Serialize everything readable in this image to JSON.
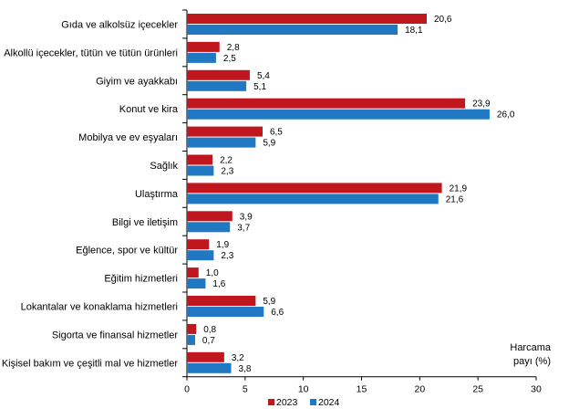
{
  "chart_data": {
    "type": "bar",
    "orientation": "horizontal",
    "categories": [
      "Gıda ve alkolsüz içecekler",
      "Alkollü içecekler, tütün ve tütün ürünleri",
      "Giyim ve ayakkabı",
      "Konut ve kira",
      "Mobilya ve ev eşyaları",
      "Sağlık",
      "Ulaştırma",
      "Bilgi ve iletişim",
      "Eğlence, spor ve kültür",
      "Eğitim hizmetleri",
      "Lokantalar ve konaklama hizmetleri",
      "Sigorta ve finansal hizmetler",
      "Kişisel bakım ve çeşitli mal ve hizmetler"
    ],
    "series": [
      {
        "name": "2023",
        "color": "#C0161E",
        "values": [
          20.6,
          2.8,
          5.4,
          23.9,
          6.5,
          2.2,
          21.9,
          3.9,
          1.9,
          1.0,
          5.9,
          0.8,
          3.2
        ],
        "labels": [
          "20,6",
          "2,8",
          "5,4",
          "23,9",
          "6,5",
          "2,2",
          "21,9",
          "3,9",
          "1,9",
          "1,0",
          "5,9",
          "0,8",
          "3,2"
        ]
      },
      {
        "name": "2024",
        "color": "#1F78C1",
        "values": [
          18.1,
          2.5,
          5.1,
          26.0,
          5.9,
          2.3,
          21.6,
          3.7,
          2.3,
          1.6,
          6.6,
          0.7,
          3.8
        ],
        "labels": [
          "18,1",
          "2,5",
          "5,1",
          "26,0",
          "5,9",
          "2,3",
          "21,6",
          "3,7",
          "2,3",
          "1,6",
          "6,6",
          "0,7",
          "3,8"
        ]
      }
    ],
    "xlim": [
      0,
      30
    ],
    "xticks": [
      0,
      5,
      10,
      15,
      20,
      25,
      30
    ],
    "xlabel_line1": "Harcama",
    "xlabel_line2": "payı  (%)",
    "legend_position": "bottom-center",
    "grid": false
  }
}
